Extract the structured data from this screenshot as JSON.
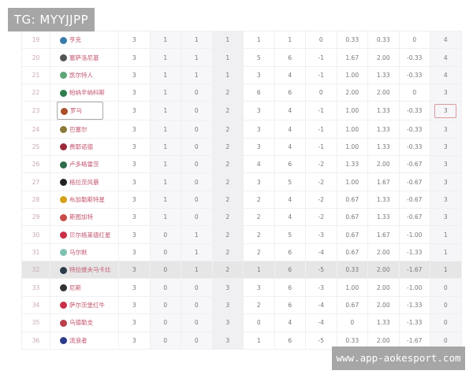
{
  "watermarks": {
    "top_left": "TG: MYYJJPP",
    "bottom_right": "www.app-aokesport.com"
  },
  "colors": {
    "team_name": "#c2566f",
    "highlight_row": "#e6e6e6"
  },
  "standings": [
    {
      "rank": "19",
      "team": "亨克",
      "logo_color": "#3a7ca8",
      "cells": [
        "3",
        "1",
        "1",
        "1",
        "1",
        "1",
        "0",
        "0.33",
        "0.33",
        "0",
        "4"
      ]
    },
    {
      "rank": "20",
      "team": "塞萨洛尼基",
      "logo_color": "#555555",
      "cells": [
        "3",
        "1",
        "1",
        "1",
        "5",
        "6",
        "-1",
        "1.67",
        "2.00",
        "-0.33",
        "4"
      ]
    },
    {
      "rank": "21",
      "team": "凯尔特人",
      "logo_color": "#5fa57a",
      "cells": [
        "3",
        "1",
        "1",
        "1",
        "3",
        "4",
        "-1",
        "1.00",
        "1.33",
        "-0.33",
        "4"
      ]
    },
    {
      "rank": "22",
      "team": "帕纳辛纳科斯",
      "logo_color": "#2e7d4f",
      "cells": [
        "3",
        "1",
        "0",
        "2",
        "6",
        "6",
        "0",
        "2.00",
        "2.00",
        "0",
        "3"
      ]
    },
    {
      "rank": "23",
      "team": "罗马",
      "logo_color": "#a8502a",
      "cells": [
        "3",
        "1",
        "0",
        "2",
        "3",
        "4",
        "-1",
        "1.00",
        "1.33",
        "-0.33",
        "3"
      ],
      "boxed": true
    },
    {
      "rank": "24",
      "team": "巴塞尔",
      "logo_color": "#8a7a3a",
      "cells": [
        "3",
        "1",
        "0",
        "2",
        "3",
        "4",
        "-1",
        "1.00",
        "1.33",
        "-0.33",
        "3"
      ]
    },
    {
      "rank": "25",
      "team": "费耶诺德",
      "logo_color": "#9a2a3a",
      "cells": [
        "3",
        "1",
        "0",
        "2",
        "3",
        "4",
        "-1",
        "1.00",
        "1.33",
        "-0.33",
        "3"
      ]
    },
    {
      "rank": "26",
      "team": "卢多格雷茨",
      "logo_color": "#2e6b4a",
      "cells": [
        "3",
        "1",
        "0",
        "2",
        "4",
        "6",
        "-2",
        "1.33",
        "2.00",
        "-0.67",
        "3"
      ]
    },
    {
      "rank": "27",
      "team": "格拉茨风暴",
      "logo_color": "#222222",
      "cells": [
        "3",
        "1",
        "0",
        "2",
        "3",
        "5",
        "-2",
        "1.00",
        "1.67",
        "-0.67",
        "3"
      ]
    },
    {
      "rank": "28",
      "team": "布加勒斯特星",
      "logo_color": "#d4a017",
      "cells": [
        "3",
        "1",
        "0",
        "2",
        "2",
        "4",
        "-2",
        "0.67",
        "1.33",
        "-0.67",
        "3"
      ]
    },
    {
      "rank": "29",
      "team": "斯图加特",
      "logo_color": "#c84a4a",
      "cells": [
        "3",
        "1",
        "0",
        "2",
        "2",
        "4",
        "-2",
        "0.67",
        "1.33",
        "-0.67",
        "3"
      ]
    },
    {
      "rank": "30",
      "team": "贝尔格莱德红星",
      "logo_color": "#c8304a",
      "cells": [
        "3",
        "0",
        "1",
        "2",
        "2",
        "5",
        "-3",
        "0.67",
        "1.67",
        "-1.00",
        "1"
      ]
    },
    {
      "rank": "31",
      "team": "马尔默",
      "logo_color": "#7fc0b0",
      "cells": [
        "3",
        "0",
        "1",
        "2",
        "2",
        "6",
        "-4",
        "0.67",
        "2.00",
        "-1.33",
        "1"
      ]
    },
    {
      "rank": "32",
      "team": "特拉维夫马卡比",
      "logo_color": "#2a3a4a",
      "cells": [
        "3",
        "0",
        "1",
        "2",
        "1",
        "6",
        "-5",
        "0.33",
        "2.00",
        "-1.67",
        "1"
      ],
      "highlight": true
    },
    {
      "rank": "33",
      "team": "尼斯",
      "logo_color": "#333333",
      "cells": [
        "3",
        "0",
        "0",
        "3",
        "3",
        "6",
        "-3",
        "1.00",
        "2.00",
        "-1.00",
        "0"
      ]
    },
    {
      "rank": "34",
      "team": "萨尔茨堡红牛",
      "logo_color": "#c8304a",
      "cells": [
        "3",
        "0",
        "0",
        "3",
        "2",
        "6",
        "-4",
        "0.67",
        "2.00",
        "-1.33",
        "0"
      ]
    },
    {
      "rank": "35",
      "team": "乌德勒支",
      "logo_color": "#b8404a",
      "cells": [
        "3",
        "0",
        "0",
        "3",
        "0",
        "4",
        "-4",
        "0",
        "1.33",
        "-1.33",
        "0"
      ]
    },
    {
      "rank": "36",
      "team": "流浪者",
      "logo_color": "#2a3a8a",
      "cells": [
        "3",
        "0",
        "0",
        "3",
        "1",
        "6",
        "-5",
        "0.33",
        "2.00",
        "-1.67",
        "0"
      ]
    }
  ]
}
